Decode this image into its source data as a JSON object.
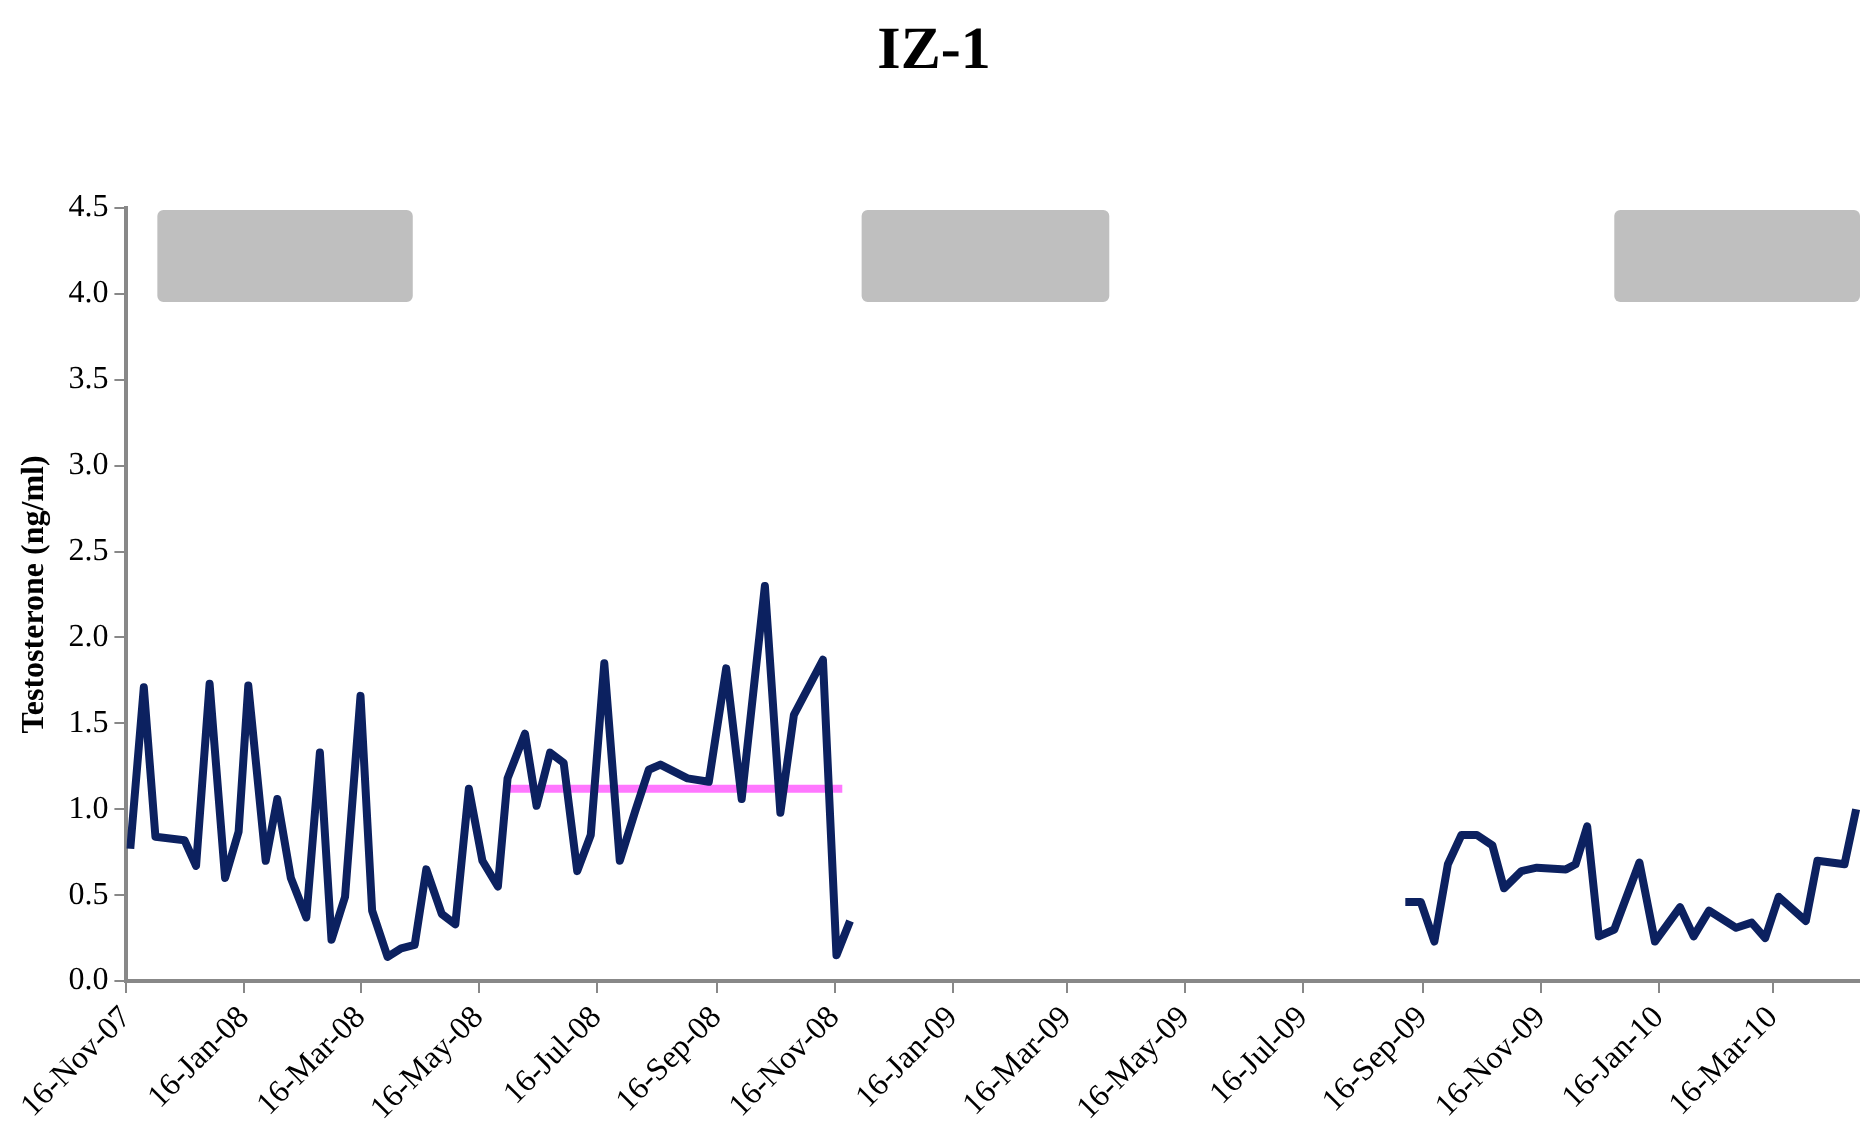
{
  "chart_data": {
    "type": "line",
    "title": "IZ-1",
    "ylabel": "Testosterone (ng/ml)",
    "xlim": [
      "2007-11-16",
      "2010-04-30"
    ],
    "xticks": [
      {
        "value": "2007-11-16",
        "label": "16-Nov-07"
      },
      {
        "value": "2008-01-16",
        "label": "16-Jan-08"
      },
      {
        "value": "2008-03-16",
        "label": "16-Mar-08"
      },
      {
        "value": "2008-05-16",
        "label": "16-May-08"
      },
      {
        "value": "2008-07-16",
        "label": "16-Jul-08"
      },
      {
        "value": "2008-09-16",
        "label": "16-Sep-08"
      },
      {
        "value": "2008-11-16",
        "label": "16-Nov-08"
      },
      {
        "value": "2009-01-16",
        "label": "16-Jan-09"
      },
      {
        "value": "2009-03-16",
        "label": "16-Mar-09"
      },
      {
        "value": "2009-05-16",
        "label": "16-May-09"
      },
      {
        "value": "2009-07-16",
        "label": "16-Jul-09"
      },
      {
        "value": "2009-09-16",
        "label": "16-Sep-09"
      },
      {
        "value": "2009-11-16",
        "label": "16-Nov-09"
      },
      {
        "value": "2010-01-16",
        "label": "16-Jan-10"
      },
      {
        "value": "2010-03-16",
        "label": "16-Mar-10"
      }
    ],
    "ylim": [
      0,
      4.5
    ],
    "yticks": [
      {
        "value": 0,
        "label": "0.0"
      },
      0.5,
      {
        "value": 1,
        "label": "1.0"
      },
      1.5,
      {
        "value": 2,
        "label": "2.0"
      },
      2.5,
      {
        "value": 3,
        "label": "3.0"
      },
      3.5,
      {
        "value": 4,
        "label": "4.0"
      },
      4.5
    ],
    "grid": false,
    "legend": false,
    "marker": "none",
    "line_style": "solid",
    "series": [
      {
        "color": "#0c2160",
        "x": [
          "2007-11-18",
          "2007-11-25",
          "2007-12-01",
          "2007-12-16",
          "2007-12-22",
          "2007-12-29",
          "2008-01-06",
          "2008-01-13",
          "2008-01-18",
          "2008-01-27",
          "2008-02-02",
          "2008-02-09",
          "2008-02-17",
          "2008-02-24",
          "2008-03-01",
          "2008-03-08",
          "2008-03-16",
          "2008-03-22",
          "2008-03-30",
          "2008-04-06",
          "2008-04-13",
          "2008-04-19",
          "2008-04-27",
          "2008-05-04",
          "2008-05-11",
          "2008-05-18",
          "2008-05-26",
          "2008-05-31",
          "2008-06-09",
          "2008-06-15",
          "2008-06-22",
          "2008-06-29",
          "2008-07-06",
          "2008-07-13",
          "2008-07-20",
          "2008-07-28",
          "2008-08-05",
          "2008-08-12",
          "2008-08-18",
          "2008-09-01",
          "2008-09-12",
          "2008-09-21",
          "2008-09-29",
          "2008-10-11",
          "2008-10-19",
          "2008-10-26",
          "2008-11-10",
          "2008-11-17",
          "2008-11-24"
        ],
        "values": [
          0.77,
          1.71,
          0.84,
          0.82,
          0.67,
          1.73,
          0.6,
          0.87,
          1.72,
          0.7,
          1.06,
          0.6,
          0.37,
          1.33,
          0.24,
          0.49,
          1.66,
          0.41,
          0.14,
          0.19,
          0.21,
          0.65,
          0.39,
          0.33,
          1.12,
          0.7,
          0.55,
          1.18,
          1.44,
          1.02,
          1.33,
          1.27,
          0.64,
          0.85,
          1.85,
          0.7,
          0.99,
          1.23,
          1.26,
          1.18,
          1.16,
          1.82,
          1.06,
          2.3,
          0.98,
          1.55,
          1.87,
          0.15,
          0.35
        ]
      },
      {
        "color": "#0c2160",
        "x": [
          "2009-09-07",
          "2009-09-15",
          "2009-09-22",
          "2009-09-29",
          "2009-10-06",
          "2009-10-14",
          "2009-10-22",
          "2009-10-28",
          "2009-11-06",
          "2009-11-14",
          "2009-11-29",
          "2009-12-04",
          "2009-12-10",
          "2009-12-16",
          "2009-12-24",
          "2010-01-06",
          "2010-01-14",
          "2010-01-27",
          "2010-02-03",
          "2010-02-11",
          "2010-02-25",
          "2010-03-05",
          "2010-03-12",
          "2010-03-19",
          "2010-04-02",
          "2010-04-08",
          "2010-04-22",
          "2010-04-28"
        ],
        "values": [
          0.46,
          0.46,
          0.23,
          0.68,
          0.85,
          0.85,
          0.79,
          0.54,
          0.64,
          0.66,
          0.65,
          0.68,
          0.9,
          0.26,
          0.3,
          0.69,
          0.23,
          0.43,
          0.26,
          0.41,
          0.31,
          0.34,
          0.25,
          0.49,
          0.35,
          0.7,
          0.68,
          1.0
        ]
      },
      {
        "color": "#ff77ff",
        "x": [
          "2008-05-29",
          "2008-11-20"
        ],
        "values": [
          1.12,
          1.12
        ]
      }
    ],
    "bands": [
      {
        "axis": "x",
        "from": "2007-12-02",
        "to": "2008-04-12",
        "color": "#bfbfbf"
      },
      {
        "axis": "x",
        "from": "2008-11-30",
        "to": "2009-04-07",
        "color": "#bfbfbf"
      },
      {
        "axis": "x",
        "from": "2009-12-24",
        "to": "2010-04-30",
        "color": "#bfbfbf"
      }
    ]
  }
}
